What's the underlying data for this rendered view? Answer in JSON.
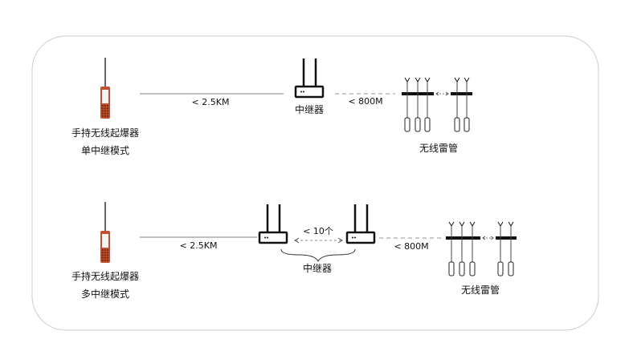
{
  "single_mode": {
    "device_label": "手持无线起爆器",
    "mode_label": "单中继模式",
    "device_to_relay_distance": "< 2.5KM",
    "relay_label": "中继器",
    "relay_to_detonator_distance": "< 800M",
    "detonator_label": "无线雷管"
  },
  "multi_mode": {
    "device_label": "手持无线起爆器",
    "mode_label": "多中继模式",
    "device_to_relay_distance": "<  2.5KM",
    "relay_count_label": "< 10个",
    "relay_label": "中继器",
    "relay_to_detonator_distance": "< 800M",
    "detonator_label": "无线雷管"
  },
  "colors": {
    "device_body": "#c0502e",
    "frame": "#cccccc",
    "line": "#aaaaaa"
  }
}
